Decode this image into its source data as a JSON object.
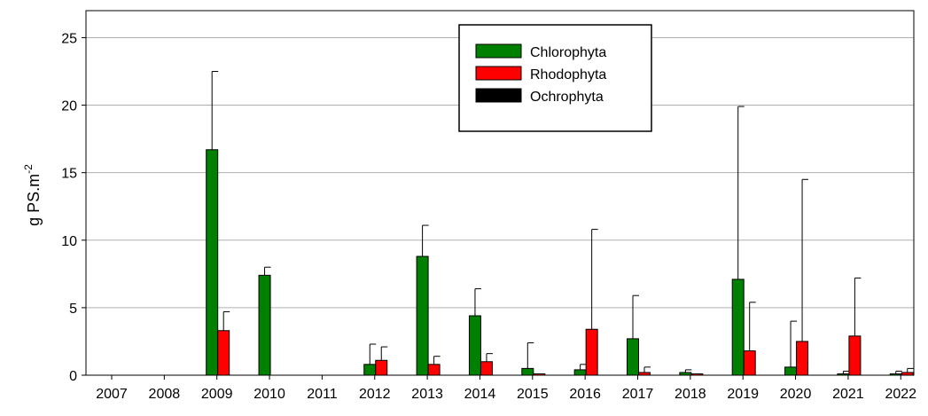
{
  "chart_data": {
    "type": "bar",
    "ylabel": {
      "text": "g PS.m",
      "superscript": "-2"
    },
    "categories": [
      "2007",
      "2008",
      "2009",
      "2010",
      "2011",
      "2012",
      "2013",
      "2014",
      "2015",
      "2016",
      "2017",
      "2018",
      "2019",
      "2020",
      "2021",
      "2022"
    ],
    "series": [
      {
        "name": "Chlorophyta",
        "color": "#008000",
        "values": [
          0,
          0,
          16.7,
          7.4,
          0,
          0.8,
          8.8,
          4.4,
          0.5,
          0.4,
          2.7,
          0.2,
          7.1,
          0.6,
          0.1,
          0.1
        ],
        "errors": [
          0,
          0,
          5.8,
          0.6,
          0,
          1.5,
          2.3,
          2.0,
          1.9,
          0.4,
          3.2,
          0.2,
          12.8,
          3.4,
          0.2,
          0.2
        ]
      },
      {
        "name": "Rhodophyta",
        "color": "#ff0000",
        "values": [
          0,
          0,
          3.3,
          0,
          0,
          1.1,
          0.8,
          1.0,
          0.1,
          3.4,
          0.2,
          0.1,
          1.8,
          2.5,
          2.9,
          0.2
        ],
        "errors": [
          0,
          0,
          1.4,
          0,
          0,
          1.0,
          0.6,
          0.6,
          0,
          7.4,
          0.4,
          0,
          3.6,
          12.0,
          4.3,
          0.3
        ]
      },
      {
        "name": "Ochrophyta",
        "color": "#000000",
        "values": [
          0,
          0,
          0,
          0,
          0,
          0,
          0,
          0,
          0,
          0,
          0,
          0,
          0,
          0,
          0,
          0
        ],
        "errors": [
          0,
          0,
          0,
          0,
          0,
          0,
          0,
          0,
          0,
          0,
          0,
          0,
          0,
          0,
          0,
          0
        ]
      }
    ],
    "ylim": [
      0,
      27
    ],
    "yticks": [
      0,
      5,
      10,
      15,
      20,
      25
    ],
    "grid": true,
    "legend": "top"
  }
}
